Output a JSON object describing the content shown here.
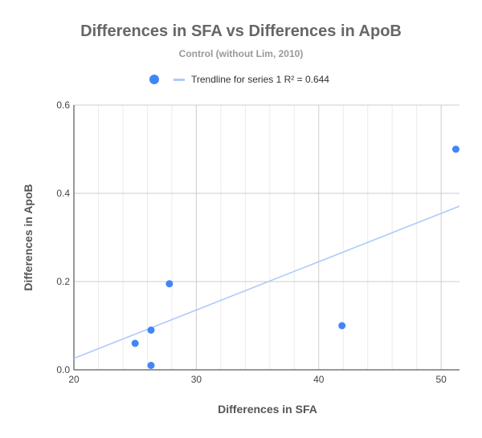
{
  "chart_data": {
    "type": "scatter",
    "title": "Differences in SFA vs Differences in ApoB",
    "subtitle": "Control (without Lim, 2010)",
    "xlabel": "Differences in SFA",
    "ylabel": "Differences in ApoB",
    "xlim": [
      20,
      51.5
    ],
    "ylim": [
      0,
      0.6
    ],
    "x_ticks": [
      20,
      30,
      40,
      50
    ],
    "y_ticks": [
      0,
      0.2,
      0.4,
      0.6
    ],
    "x_tick_labels": [
      "20",
      "30",
      "40",
      "50"
    ],
    "y_tick_labels": [
      "0.0",
      "0.2",
      "0.4",
      "0.6"
    ],
    "x_minor_step": 2,
    "grid": true,
    "legend_position": "top",
    "series": [
      {
        "color": "#4285f4",
        "points": [
          {
            "x": 25.0,
            "y": 0.06
          },
          {
            "x": 26.3,
            "y": 0.09
          },
          {
            "x": 26.3,
            "y": 0.01
          },
          {
            "x": 27.8,
            "y": 0.195
          },
          {
            "x": 41.9,
            "y": 0.1
          },
          {
            "x": 51.2,
            "y": 0.5
          }
        ]
      }
    ],
    "trendline": {
      "label": "Trendline for series 1 R² = 0.644",
      "color": "#aecbfa",
      "x_range": [
        20,
        51.5
      ],
      "y_range": [
        0.026,
        0.371
      ]
    }
  }
}
